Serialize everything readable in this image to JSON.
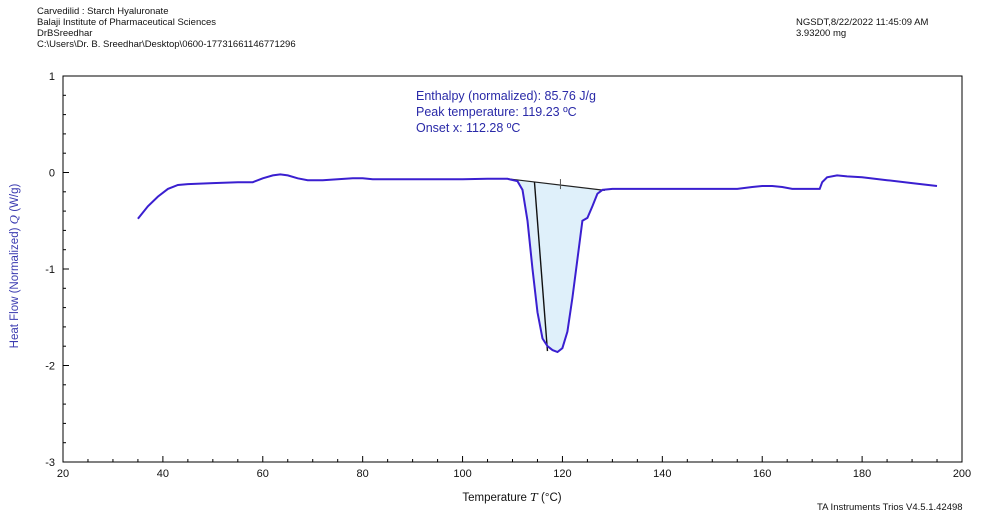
{
  "header": {
    "left_lines": [
      "Carvedilid : Starch Hyaluronate",
      "Balaji Institute of Pharmaceutical Sciences",
      "DrBSreedhar",
      "C:\\Users\\Dr. B. Sreedhar\\Desktop\\0600-17731661146771296"
    ],
    "right_lines": [
      "NGSDT,8/22/2022 11:45:09 AM",
      "3.93200 mg"
    ]
  },
  "footer": "TA Instruments Trios V4.5.1.42498",
  "colors": {
    "curve": "#3a1fd0",
    "fill": "#dff0fa",
    "axis_title": "#3a3ab0",
    "annotation": "#2a2aa8"
  },
  "chart_data": {
    "type": "line",
    "title": "",
    "xlabel_prefix": "Temperature",
    "xlabel_symbol": "T",
    "xlabel_unit": "(°C)",
    "ylabel_prefix": "Heat Flow (Normalized)",
    "ylabel_symbol": "Q",
    "ylabel_unit": "(W/g)",
    "xlim": [
      20,
      200
    ],
    "ylim": [
      -3,
      1
    ],
    "xticks": [
      20,
      40,
      60,
      80,
      100,
      120,
      140,
      160,
      180,
      200
    ],
    "yticks": [
      -3,
      -2,
      -1,
      0,
      1
    ],
    "grid": false,
    "annotations": [
      "Enthalpy (normalized): 85.76 J/g",
      "Peak temperature: 119.23 ºC",
      "Onset x: 112.28 ºC"
    ],
    "series": [
      {
        "x": [
          35,
          37,
          39,
          41,
          43,
          45,
          50,
          55,
          58,
          60,
          62,
          63.5,
          65,
          67,
          69,
          72,
          75,
          78,
          80,
          82,
          85,
          90,
          95,
          100,
          105,
          109,
          111,
          112,
          113,
          114,
          115,
          116,
          117,
          118,
          119,
          120,
          121,
          122,
          123,
          123.5,
          124,
          125,
          126,
          127,
          128,
          130,
          135,
          140,
          145,
          150,
          155,
          158,
          160,
          162,
          164,
          166,
          168,
          170,
          171.5,
          172,
          173,
          175,
          177,
          180,
          185,
          190,
          195
        ],
        "y": [
          -0.48,
          -0.35,
          -0.25,
          -0.17,
          -0.13,
          -0.12,
          -0.11,
          -0.1,
          -0.1,
          -0.06,
          -0.03,
          -0.02,
          -0.03,
          -0.06,
          -0.08,
          -0.08,
          -0.07,
          -0.06,
          -0.06,
          -0.07,
          -0.07,
          -0.07,
          -0.07,
          -0.07,
          -0.065,
          -0.065,
          -0.09,
          -0.18,
          -0.5,
          -1.0,
          -1.45,
          -1.72,
          -1.8,
          -1.84,
          -1.86,
          -1.82,
          -1.65,
          -1.3,
          -0.9,
          -0.7,
          -0.5,
          -0.47,
          -0.35,
          -0.22,
          -0.18,
          -0.17,
          -0.17,
          -0.17,
          -0.17,
          -0.17,
          -0.17,
          -0.15,
          -0.14,
          -0.14,
          -0.15,
          -0.17,
          -0.17,
          -0.17,
          -0.17,
          -0.1,
          -0.05,
          -0.03,
          -0.04,
          -0.05,
          -0.08,
          -0.11,
          -0.14
        ]
      }
    ],
    "baseline": {
      "x": [
        109,
        128.5
      ],
      "y": [
        -0.065,
        -0.185
      ]
    },
    "onset_tangent": {
      "x": [
        114.4,
        117
      ],
      "y": [
        -0.1,
        -1.85
      ]
    },
    "baseline_marker": {
      "x": 119.6,
      "y": -0.12
    }
  }
}
